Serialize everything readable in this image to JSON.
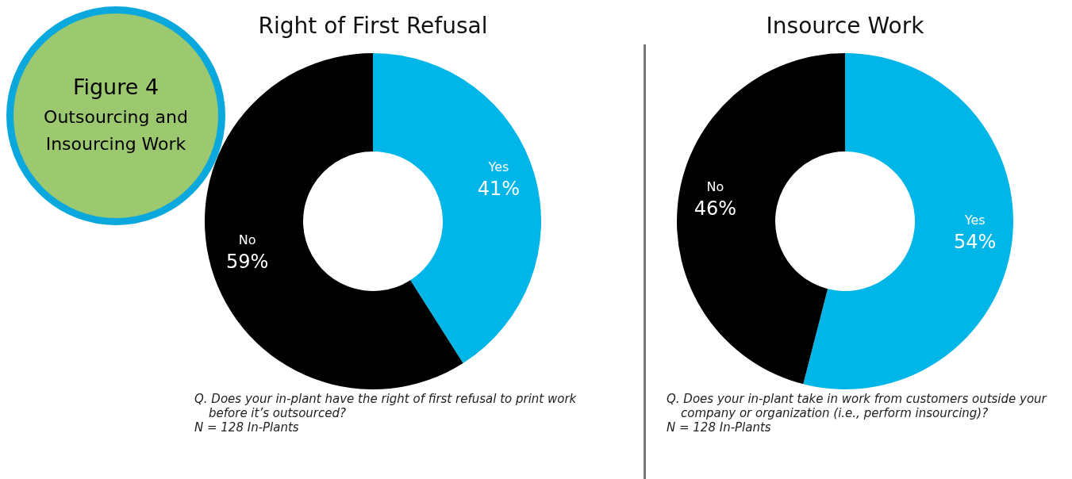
{
  "chart_data": [
    {
      "type": "other",
      "title": "Figure 4",
      "annotations": [
        "Outsourcing and Insourcing Work"
      ]
    },
    {
      "type": "donut",
      "title": "Right of First Refusal",
      "categories": [
        "Yes",
        "No"
      ],
      "values": [
        41,
        59
      ],
      "colors": [
        "#00b5e8",
        "#000000"
      ],
      "value_labels": [
        "41%",
        "59%"
      ],
      "annotations": [
        "Q. Does your in-plant have the right of first refusal to print work before it’s outsourced?",
        "N = 128 In-Plants"
      ]
    },
    {
      "type": "donut",
      "title": "Insource Work",
      "categories": [
        "Yes",
        "No"
      ],
      "values": [
        54,
        46
      ],
      "colors": [
        "#00b5e8",
        "#000000"
      ],
      "value_labels": [
        "54%",
        "46%"
      ],
      "annotations": [
        "Q. Does your in-plant take in work from customers outside your company or organization (i.e., perform insourcing)?",
        "N = 128 In-Plants"
      ]
    }
  ]
}
